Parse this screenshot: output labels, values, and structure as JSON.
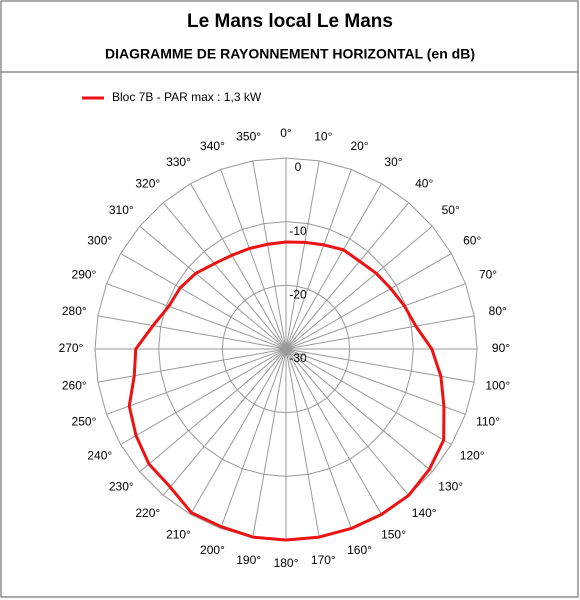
{
  "chart_data": {
    "type": "polar",
    "title": "Le Mans local Le Mans",
    "subtitle": "DIAGRAMME DE RAYONNEMENT HORIZONTAL  (en dB)",
    "categories": [
      "0°",
      "10°",
      "20°",
      "30°",
      "40°",
      "50°",
      "60°",
      "70°",
      "80°",
      "90°",
      "100°",
      "110°",
      "120°",
      "130°",
      "140°",
      "150°",
      "160°",
      "170°",
      "180°",
      "190°",
      "200°",
      "210°",
      "220°",
      "230°",
      "240°",
      "250°",
      "260°",
      "270°",
      "280°",
      "290°",
      "300°",
      "310°",
      "320°",
      "330°",
      "340°",
      "350°"
    ],
    "series": [
      {
        "name": "Bloc 7B - PAR max : 1,3 kW",
        "color": "#ee1111",
        "values": [
          -13.2,
          -13,
          -12.6,
          -12,
          -12,
          -11.5,
          -11,
          -10.2,
          -9.3,
          -7.1,
          -5.3,
          -3.6,
          -1.4,
          -0.6,
          0,
          0,
          0,
          0,
          0,
          0,
          -0.3,
          -0.3,
          -1.7,
          -1.9,
          -2.8,
          -3.8,
          -5.8,
          -6.4,
          -8.8,
          -10.4,
          -10.8,
          -11.5,
          -12.5,
          -13,
          -13.2,
          -13.3
        ]
      }
    ],
    "rlim": [
      -30,
      0
    ],
    "rticks": [
      0,
      -10,
      -20,
      -30
    ],
    "legend": "top-left"
  }
}
